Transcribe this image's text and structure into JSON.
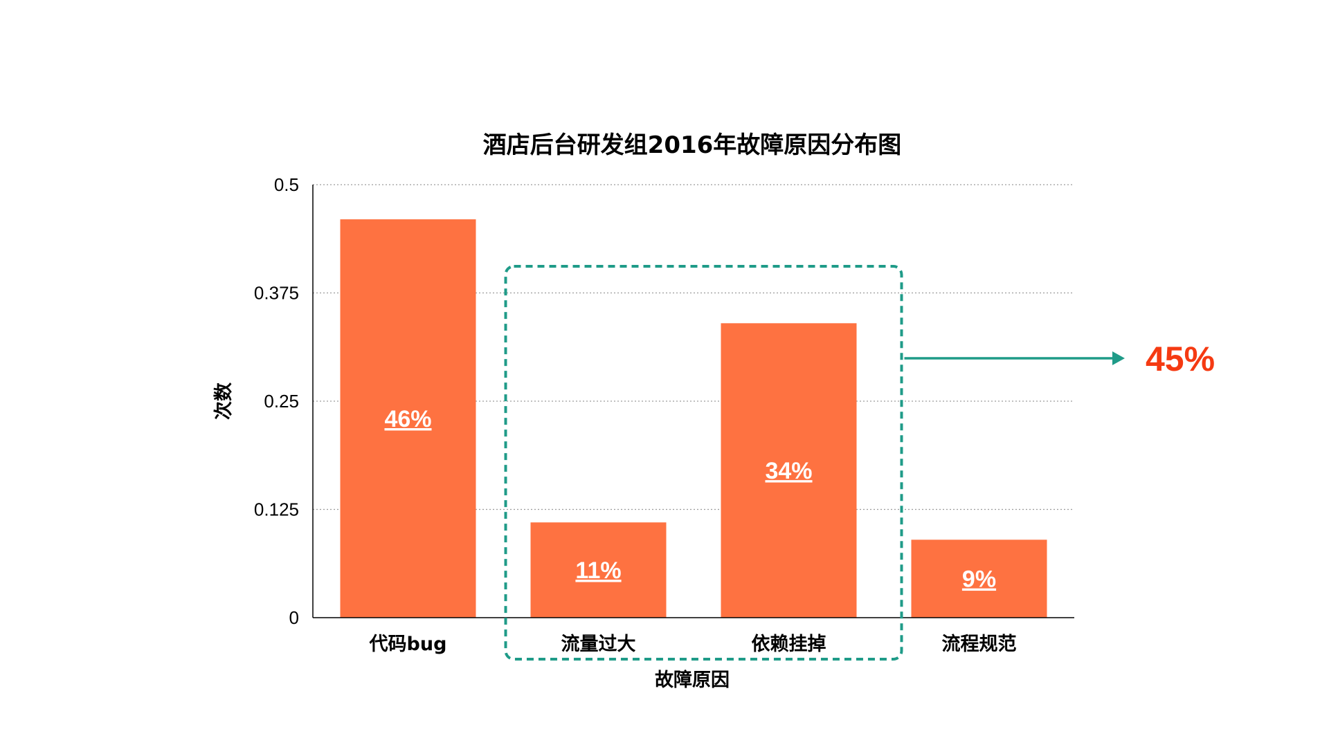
{
  "colors": {
    "bar": "#fe7241",
    "highlight": "#1f9b88",
    "callout": "#f53a12",
    "grid": "#9a9a9a",
    "axis": "#000000"
  },
  "chart_data": {
    "type": "bar",
    "title": "酒店后台研发组2016年故障原因分布图",
    "xlabel": "故障原因",
    "ylabel": "次数",
    "categories": [
      "代码bug",
      "流量过大",
      "依赖挂掉",
      "流程规范"
    ],
    "values": [
      0.46,
      0.11,
      0.34,
      0.09
    ],
    "data_labels": [
      "46%",
      "11%",
      "34%",
      "9%"
    ],
    "ylim": [
      0,
      0.5
    ],
    "yticks": [
      "0",
      "0.125",
      "0.25",
      "0.375",
      "0.5"
    ],
    "grid": true,
    "highlight": {
      "categories": [
        "流量过大",
        "依赖挂掉"
      ],
      "label": "45%"
    }
  }
}
